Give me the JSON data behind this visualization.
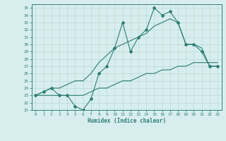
{
  "xlabel": "Humidex (Indice chaleur)",
  "x": [
    0,
    1,
    2,
    3,
    4,
    5,
    6,
    7,
    8,
    9,
    10,
    11,
    12,
    13,
    14,
    15,
    16,
    17,
    18,
    19,
    20,
    21,
    22,
    23
  ],
  "line_main": [
    23,
    23.5,
    24,
    23,
    23,
    21.5,
    21,
    22.5,
    26,
    27,
    29.5,
    33,
    29,
    31,
    32,
    35,
    34,
    34.5,
    33,
    30,
    30,
    29,
    27,
    27
  ],
  "line_upper": [
    23,
    23.5,
    24,
    24,
    24.5,
    25,
    25,
    26,
    27.5,
    28.5,
    29.5,
    30,
    30.5,
    31,
    31.5,
    32.5,
    33,
    33.5,
    33,
    30,
    30,
    29.5,
    27,
    27
  ],
  "line_lower": [
    23,
    23,
    23,
    23,
    23,
    23,
    23,
    23.5,
    24,
    24,
    24.5,
    25,
    25,
    25.5,
    26,
    26,
    26.5,
    26.5,
    27,
    27,
    27.5,
    27.5,
    27.5,
    27.5
  ],
  "line_color": "#2d7d74",
  "bg_color": "#d8eeee",
  "grid_color": "#b8d8d8",
  "ylim": [
    21,
    35.5
  ],
  "xlim": [
    -0.5,
    23.5
  ],
  "yticks": [
    21,
    22,
    23,
    24,
    25,
    26,
    27,
    28,
    29,
    30,
    31,
    32,
    33,
    34,
    35
  ],
  "xticks": [
    0,
    1,
    2,
    3,
    4,
    5,
    6,
    7,
    8,
    9,
    10,
    11,
    12,
    13,
    14,
    15,
    16,
    17,
    18,
    19,
    20,
    21,
    22,
    23
  ]
}
